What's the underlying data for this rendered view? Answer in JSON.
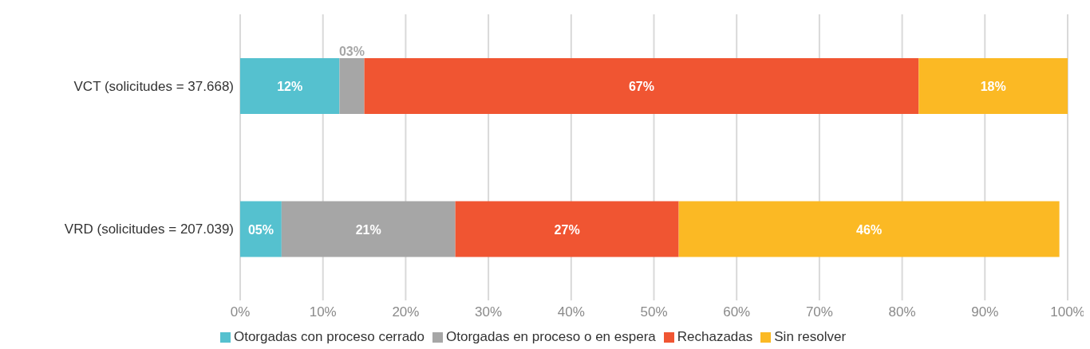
{
  "chart_data": {
    "type": "bar",
    "orientation": "horizontal",
    "stacked": true,
    "categories": [
      "VCT (solicitudes = 37.668)",
      "VRD (solicitudes = 207.039)"
    ],
    "series": [
      {
        "name": "Otorgadas con proceso cerrado",
        "color": "#55c1cf",
        "values": [
          12,
          5
        ],
        "value_labels": [
          "12%",
          "05%"
        ]
      },
      {
        "name": "Otorgadas en proceso o en espera",
        "color": "#a6a6a6",
        "values": [
          3,
          21
        ],
        "value_labels": [
          "03%",
          "21%"
        ]
      },
      {
        "name": "Rechazadas",
        "color": "#f05532",
        "values": [
          67,
          27
        ],
        "value_labels": [
          "67%",
          "27%"
        ]
      },
      {
        "name": "Sin resolver",
        "color": "#fbb924",
        "values": [
          18,
          46
        ],
        "value_labels": [
          "18%",
          "46%"
        ]
      }
    ],
    "xlim": [
      0,
      100
    ],
    "xticks": [
      {
        "value": 0,
        "label": "0%"
      },
      {
        "value": 10,
        "label": "10%"
      },
      {
        "value": 20,
        "label": "20%"
      },
      {
        "value": 30,
        "label": "30%"
      },
      {
        "value": 40,
        "label": "40%"
      },
      {
        "value": 50,
        "label": "50%"
      },
      {
        "value": 60,
        "label": "60%"
      },
      {
        "value": 70,
        "label": "70%"
      },
      {
        "value": 80,
        "label": "80%"
      },
      {
        "value": 90,
        "label": "90%"
      },
      {
        "value": 100,
        "label": "100%"
      }
    ],
    "grid": "x",
    "legend": "bottom"
  }
}
